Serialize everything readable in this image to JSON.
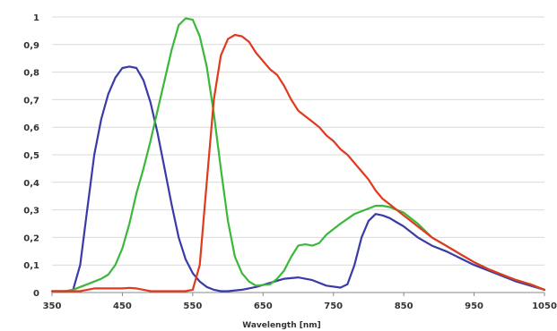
{
  "chart_data": {
    "type": "line",
    "title": "",
    "xlabel": "Wavelength [nm]",
    "ylabel": "",
    "xlim": [
      350,
      1050
    ],
    "ylim": [
      0,
      1
    ],
    "x_ticks": [
      350,
      450,
      550,
      650,
      750,
      850,
      950,
      1050
    ],
    "y_ticks": [
      0,
      0.1,
      0.2,
      0.3,
      0.4,
      0.5,
      0.6,
      0.7,
      0.8,
      0.9,
      1
    ],
    "y_tick_labels": [
      "0",
      "0,1",
      "0,2",
      "0,3",
      "0,4",
      "0,5",
      "0,6",
      "0,7",
      "0,8",
      "0,9",
      "1"
    ],
    "grid": "horizontal",
    "legend": "none",
    "series": [
      {
        "color": "#3a3aa8",
        "points": [
          [
            350,
            0.005
          ],
          [
            370,
            0.005
          ],
          [
            380,
            0.01
          ],
          [
            390,
            0.1
          ],
          [
            400,
            0.3
          ],
          [
            410,
            0.5
          ],
          [
            420,
            0.63
          ],
          [
            430,
            0.72
          ],
          [
            440,
            0.78
          ],
          [
            450,
            0.815
          ],
          [
            460,
            0.82
          ],
          [
            470,
            0.815
          ],
          [
            480,
            0.77
          ],
          [
            490,
            0.69
          ],
          [
            500,
            0.58
          ],
          [
            510,
            0.45
          ],
          [
            520,
            0.32
          ],
          [
            530,
            0.2
          ],
          [
            540,
            0.12
          ],
          [
            550,
            0.07
          ],
          [
            560,
            0.04
          ],
          [
            570,
            0.02
          ],
          [
            580,
            0.01
          ],
          [
            590,
            0.005
          ],
          [
            600,
            0.005
          ],
          [
            620,
            0.01
          ],
          [
            640,
            0.02
          ],
          [
            660,
            0.035
          ],
          [
            680,
            0.05
          ],
          [
            700,
            0.055
          ],
          [
            720,
            0.045
          ],
          [
            740,
            0.025
          ],
          [
            760,
            0.018
          ],
          [
            770,
            0.03
          ],
          [
            780,
            0.1
          ],
          [
            790,
            0.2
          ],
          [
            800,
            0.26
          ],
          [
            810,
            0.285
          ],
          [
            820,
            0.28
          ],
          [
            830,
            0.27
          ],
          [
            840,
            0.255
          ],
          [
            850,
            0.24
          ],
          [
            870,
            0.2
          ],
          [
            890,
            0.17
          ],
          [
            910,
            0.15
          ],
          [
            930,
            0.125
          ],
          [
            950,
            0.1
          ],
          [
            970,
            0.08
          ],
          [
            990,
            0.06
          ],
          [
            1010,
            0.04
          ],
          [
            1030,
            0.025
          ],
          [
            1050,
            0.01
          ]
        ]
      },
      {
        "color": "#3bb83b",
        "points": [
          [
            350,
            0.005
          ],
          [
            370,
            0.005
          ],
          [
            380,
            0.01
          ],
          [
            390,
            0.02
          ],
          [
            400,
            0.03
          ],
          [
            410,
            0.04
          ],
          [
            420,
            0.05
          ],
          [
            430,
            0.065
          ],
          [
            440,
            0.1
          ],
          [
            450,
            0.16
          ],
          [
            460,
            0.25
          ],
          [
            470,
            0.36
          ],
          [
            480,
            0.45
          ],
          [
            490,
            0.55
          ],
          [
            500,
            0.66
          ],
          [
            510,
            0.77
          ],
          [
            520,
            0.88
          ],
          [
            530,
            0.97
          ],
          [
            540,
            0.995
          ],
          [
            550,
            0.99
          ],
          [
            560,
            0.93
          ],
          [
            570,
            0.82
          ],
          [
            580,
            0.65
          ],
          [
            590,
            0.45
          ],
          [
            600,
            0.26
          ],
          [
            610,
            0.13
          ],
          [
            620,
            0.07
          ],
          [
            630,
            0.04
          ],
          [
            640,
            0.025
          ],
          [
            660,
            0.03
          ],
          [
            670,
            0.05
          ],
          [
            680,
            0.08
          ],
          [
            690,
            0.13
          ],
          [
            700,
            0.17
          ],
          [
            710,
            0.175
          ],
          [
            720,
            0.17
          ],
          [
            730,
            0.18
          ],
          [
            740,
            0.21
          ],
          [
            760,
            0.25
          ],
          [
            780,
            0.285
          ],
          [
            800,
            0.305
          ],
          [
            810,
            0.315
          ],
          [
            820,
            0.315
          ],
          [
            830,
            0.31
          ],
          [
            850,
            0.29
          ],
          [
            870,
            0.25
          ],
          [
            890,
            0.2
          ],
          [
            910,
            0.17
          ],
          [
            930,
            0.14
          ],
          [
            950,
            0.11
          ],
          [
            970,
            0.085
          ],
          [
            990,
            0.065
          ],
          [
            1010,
            0.045
          ],
          [
            1030,
            0.03
          ],
          [
            1050,
            0.01
          ]
        ]
      },
      {
        "color": "#e03a1e",
        "points": [
          [
            350,
            0.005
          ],
          [
            370,
            0.005
          ],
          [
            390,
            0.005
          ],
          [
            400,
            0.01
          ],
          [
            410,
            0.015
          ],
          [
            430,
            0.015
          ],
          [
            450,
            0.015
          ],
          [
            460,
            0.017
          ],
          [
            470,
            0.015
          ],
          [
            480,
            0.01
          ],
          [
            490,
            0.005
          ],
          [
            500,
            0.005
          ],
          [
            520,
            0.005
          ],
          [
            540,
            0.005
          ],
          [
            550,
            0.01
          ],
          [
            560,
            0.1
          ],
          [
            570,
            0.4
          ],
          [
            580,
            0.7
          ],
          [
            590,
            0.86
          ],
          [
            600,
            0.92
          ],
          [
            610,
            0.935
          ],
          [
            620,
            0.93
          ],
          [
            630,
            0.91
          ],
          [
            640,
            0.87
          ],
          [
            650,
            0.84
          ],
          [
            660,
            0.81
          ],
          [
            670,
            0.79
          ],
          [
            680,
            0.75
          ],
          [
            690,
            0.7
          ],
          [
            700,
            0.66
          ],
          [
            710,
            0.64
          ],
          [
            720,
            0.62
          ],
          [
            730,
            0.6
          ],
          [
            740,
            0.57
          ],
          [
            750,
            0.55
          ],
          [
            760,
            0.52
          ],
          [
            770,
            0.5
          ],
          [
            780,
            0.47
          ],
          [
            790,
            0.44
          ],
          [
            800,
            0.41
          ],
          [
            810,
            0.37
          ],
          [
            820,
            0.34
          ],
          [
            830,
            0.32
          ],
          [
            840,
            0.3
          ],
          [
            850,
            0.28
          ],
          [
            870,
            0.24
          ],
          [
            890,
            0.2
          ],
          [
            910,
            0.17
          ],
          [
            930,
            0.14
          ],
          [
            950,
            0.11
          ],
          [
            970,
            0.085
          ],
          [
            990,
            0.065
          ],
          [
            1010,
            0.045
          ],
          [
            1030,
            0.03
          ],
          [
            1050,
            0.01
          ]
        ]
      }
    ]
  }
}
